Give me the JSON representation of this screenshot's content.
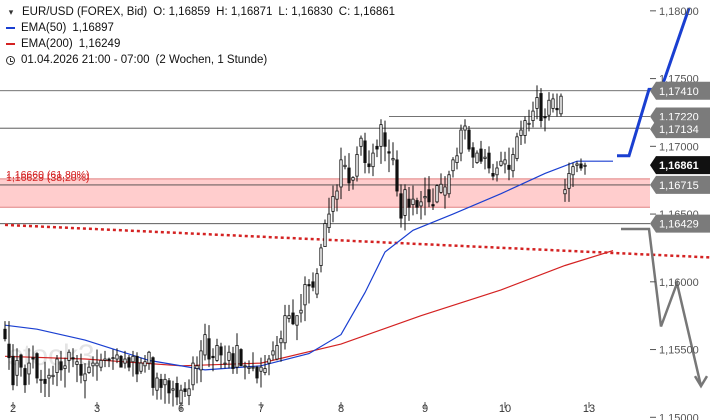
{
  "legend": {
    "symbol": "EUR/USD (FOREX, Bid)",
    "ohlc": [
      "O: 1,16859",
      "H: 1,16871",
      "L: 1,16830",
      "C: 1,16861"
    ],
    "ema50": {
      "label": "EMA(50)",
      "value": "1,16897",
      "color": "#1a3fd1"
    },
    "ema200": {
      "label": "EMA(200)",
      "value": "1,16249",
      "color": "#d42222"
    },
    "period": "01.04.2026 21:00 - 07:00",
    "range": "(2 Wochen, 1 Stunde)"
  },
  "watermark": "stock3",
  "chart_data": {
    "type": "candlestick",
    "y_range": [
      1.1498,
      1.1808
    ],
    "y_ticks": [
      {
        "v": 1.18,
        "label": "1,18000"
      },
      {
        "v": 1.175,
        "label": "1,17500"
      },
      {
        "v": 1.17,
        "label": "1,17000"
      },
      {
        "v": 1.165,
        "label": "1,16500"
      },
      {
        "v": 1.16,
        "label": "1,16000"
      },
      {
        "v": 1.155,
        "label": "1,15500"
      },
      {
        "v": 1.15,
        "label": "1,15000"
      }
    ],
    "x_ticks": [
      {
        "label": "2",
        "idx": 2
      },
      {
        "label": "3",
        "idx": 23
      },
      {
        "label": "6",
        "idx": 44
      },
      {
        "label": "7",
        "idx": 64
      },
      {
        "label": "8",
        "idx": 84
      },
      {
        "label": "9",
        "idx": 105
      },
      {
        "label": "10",
        "idx": 125
      },
      {
        "label": "13",
        "idx": 146
      }
    ],
    "price_labels": [
      {
        "v": 1.1741,
        "label": "1,17410",
        "color": "#ffffff",
        "bg": "#7b7b7b"
      },
      {
        "v": 1.1722,
        "label": "1,17220",
        "color": "#ffffff",
        "bg": "#7b7b7b"
      },
      {
        "v": 1.17134,
        "label": "1,17134",
        "color": "#ffffff",
        "bg": "#7b7b7b"
      },
      {
        "v": 1.16861,
        "label": "1,16861",
        "color": "#ffffff",
        "bg": "#111111"
      },
      {
        "v": 1.16715,
        "label": "1,16715",
        "color": "#ffffff",
        "bg": "#7b7b7b"
      },
      {
        "v": 1.16429,
        "label": "1,16429",
        "color": "#ffffff",
        "bg": "#7b7b7b"
      }
    ],
    "zone": {
      "from": 1.1655,
      "to": 1.1676,
      "labels": [
        "1,16660 (61,80%)",
        "1,16629 (38,20%)"
      ],
      "color": "#d42222"
    },
    "hlines": [
      {
        "v": 1.1741,
        "from_idx": 0
      },
      {
        "v": 1.1722,
        "from_idx": 96
      },
      {
        "v": 1.17134,
        "from_idx": 0
      },
      {
        "v": 1.16715,
        "from_idx": 0
      },
      {
        "v": 1.16429,
        "from_idx": 0
      }
    ],
    "trendline": {
      "from": {
        "idx": 0,
        "v": 1.1642
      },
      "to": {
        "idx": 182,
        "v": 1.1618
      }
    },
    "projection_up": [
      {
        "idx": 153,
        "v": 1.1693
      },
      {
        "idx": 156,
        "v": 1.1693
      },
      {
        "idx": 161,
        "v": 1.1742
      },
      {
        "idx": 164,
        "v": 1.1742
      },
      {
        "idx": 171,
        "v": 1.1802
      }
    ],
    "projection_down": [
      {
        "idx": 154,
        "v": 1.1639
      },
      {
        "idx": 161,
        "v": 1.1639
      },
      {
        "idx": 164,
        "v": 1.1567
      },
      {
        "idx": 168,
        "v": 1.1599
      },
      {
        "idx": 174,
        "v": 1.1523
      }
    ],
    "ema50_series": [
      [
        0,
        1.1568
      ],
      [
        8,
        1.1565
      ],
      [
        20,
        1.1557
      ],
      [
        36,
        1.1542
      ],
      [
        50,
        1.1535
      ],
      [
        64,
        1.1538
      ],
      [
        76,
        1.1547
      ],
      [
        84,
        1.1561
      ],
      [
        90,
        1.1592
      ],
      [
        95,
        1.1622
      ],
      [
        102,
        1.1638
      ],
      [
        112,
        1.165
      ],
      [
        124,
        1.1665
      ],
      [
        135,
        1.168
      ],
      [
        143,
        1.1689
      ],
      [
        152,
        1.1689
      ]
    ],
    "ema200_series": [
      [
        0,
        1.1545
      ],
      [
        20,
        1.1543
      ],
      [
        44,
        1.1538
      ],
      [
        64,
        1.154
      ],
      [
        84,
        1.1554
      ],
      [
        104,
        1.1575
      ],
      [
        124,
        1.1594
      ],
      [
        140,
        1.1612
      ],
      [
        152,
        1.1623
      ]
    ],
    "candles": [
      [
        1.1565,
        1.1571,
        1.1556,
        1.1558
      ],
      [
        1.1554,
        1.1571,
        1.1535,
        1.1544
      ],
      [
        1.1545,
        1.1554,
        1.152,
        1.1524
      ],
      [
        1.1531,
        1.1551,
        1.1523,
        1.1542
      ],
      [
        1.1546,
        1.1547,
        1.153,
        1.1537
      ],
      [
        1.1536,
        1.1539,
        1.1518,
        1.1524
      ],
      [
        1.1532,
        1.1551,
        1.1524,
        1.154
      ],
      [
        1.1544,
        1.1553,
        1.1536,
        1.1543
      ],
      [
        1.1547,
        1.1548,
        1.1525,
        1.1529
      ],
      [
        1.1528,
        1.1535,
        1.1518,
        1.1528
      ],
      [
        1.1528,
        1.1541,
        1.1515,
        1.1525
      ],
      [
        1.1529,
        1.1536,
        1.1515,
        1.1531
      ],
      [
        1.153,
        1.1538,
        1.1524,
        1.1531
      ],
      [
        1.1533,
        1.1546,
        1.1523,
        1.1543
      ],
      [
        1.1541,
        1.1549,
        1.1527,
        1.1535
      ],
      [
        1.1536,
        1.1544,
        1.1522,
        1.1538
      ],
      [
        1.1542,
        1.155,
        1.1533,
        1.1548
      ],
      [
        1.1544,
        1.1551,
        1.1537,
        1.1543
      ],
      [
        1.1539,
        1.1546,
        1.1526,
        1.1541
      ],
      [
        1.1539,
        1.1547,
        1.1525,
        1.1531
      ],
      [
        1.1527,
        1.154,
        1.1514,
        1.1532
      ],
      [
        1.1533,
        1.1542,
        1.1532,
        1.1537
      ],
      [
        1.1538,
        1.1545,
        1.153,
        1.154
      ],
      [
        1.1538,
        1.155,
        1.1527,
        1.154
      ],
      [
        1.1537,
        1.1547,
        1.1534,
        1.1542
      ],
      [
        1.1542,
        1.1549,
        1.1537,
        1.1543
      ],
      [
        1.1543,
        1.1544,
        1.1537,
        1.1542
      ],
      [
        1.1544,
        1.155,
        1.1535,
        1.1544
      ],
      [
        1.1543,
        1.1551,
        1.154,
        1.1546
      ],
      [
        1.1545,
        1.1546,
        1.1537,
        1.1537
      ],
      [
        1.154,
        1.1549,
        1.1536,
        1.1543
      ],
      [
        1.1544,
        1.1546,
        1.1534,
        1.1537
      ],
      [
        1.1541,
        1.1549,
        1.153,
        1.1545
      ],
      [
        1.1545,
        1.1548,
        1.1526,
        1.1532
      ],
      [
        1.1534,
        1.1544,
        1.1532,
        1.154
      ],
      [
        1.1538,
        1.1546,
        1.1533,
        1.1541
      ],
      [
        1.154,
        1.1549,
        1.1535,
        1.1548
      ],
      [
        1.1544,
        1.1545,
        1.1516,
        1.1522
      ],
      [
        1.152,
        1.1533,
        1.1513,
        1.1529
      ],
      [
        1.1528,
        1.1532,
        1.1513,
        1.1522
      ],
      [
        1.1524,
        1.1532,
        1.151,
        1.1528
      ],
      [
        1.1527,
        1.1529,
        1.151,
        1.1518
      ],
      [
        1.152,
        1.1527,
        1.1508,
        1.1521
      ],
      [
        1.1525,
        1.153,
        1.1509,
        1.1515
      ],
      [
        1.151,
        1.1524,
        1.1505,
        1.152
      ],
      [
        1.1521,
        1.1526,
        1.1515,
        1.1519
      ],
      [
        1.1516,
        1.1528,
        1.1509,
        1.1521
      ],
      [
        1.1524,
        1.1545,
        1.152,
        1.154
      ],
      [
        1.1536,
        1.1545,
        1.1525,
        1.1538
      ],
      [
        1.1535,
        1.1557,
        1.1526,
        1.1549
      ],
      [
        1.1546,
        1.1569,
        1.1542,
        1.1561
      ],
      [
        1.1558,
        1.1568,
        1.1537,
        1.1543
      ],
      [
        1.1545,
        1.1551,
        1.1534,
        1.1544
      ],
      [
        1.1542,
        1.1558,
        1.1541,
        1.1553
      ],
      [
        1.1552,
        1.1555,
        1.1536,
        1.1546
      ],
      [
        1.154,
        1.1553,
        1.1536,
        1.154
      ],
      [
        1.1542,
        1.1553,
        1.1536,
        1.1548
      ],
      [
        1.1547,
        1.1552,
        1.1532,
        1.1536
      ],
      [
        1.1537,
        1.1562,
        1.1532,
        1.1553
      ],
      [
        1.155,
        1.1551,
        1.1538,
        1.1538
      ],
      [
        1.1538,
        1.1541,
        1.1528,
        1.1538
      ],
      [
        1.1536,
        1.1542,
        1.1532,
        1.1537
      ],
      [
        1.1537,
        1.1548,
        1.1534,
        1.1537
      ],
      [
        1.1537,
        1.1538,
        1.1525,
        1.1529
      ],
      [
        1.1534,
        1.1544,
        1.1522,
        1.1537
      ],
      [
        1.1533,
        1.1546,
        1.1531,
        1.1536
      ],
      [
        1.154,
        1.1546,
        1.1531,
        1.1543
      ],
      [
        1.1546,
        1.1556,
        1.1542,
        1.1549
      ],
      [
        1.1543,
        1.156,
        1.1542,
        1.1553
      ],
      [
        1.1555,
        1.1564,
        1.1541,
        1.1558
      ],
      [
        1.1555,
        1.1583,
        1.155,
        1.1575
      ],
      [
        1.1573,
        1.1583,
        1.157,
        1.1575
      ],
      [
        1.1577,
        1.1587,
        1.1568,
        1.1569
      ],
      [
        1.1568,
        1.1575,
        1.1557,
        1.1575
      ],
      [
        1.1577,
        1.1591,
        1.157,
        1.1579
      ],
      [
        1.1583,
        1.1604,
        1.1571,
        1.1598
      ],
      [
        1.1598,
        1.1602,
        1.1584,
        1.1597
      ],
      [
        1.16,
        1.1607,
        1.1593,
        1.1596
      ],
      [
        1.1591,
        1.161,
        1.1588,
        1.1606
      ],
      [
        1.1612,
        1.1628,
        1.1607,
        1.1625
      ],
      [
        1.1626,
        1.1646,
        1.1626,
        1.1643
      ],
      [
        1.164,
        1.1662,
        1.1636,
        1.165
      ],
      [
        1.1652,
        1.1671,
        1.1644,
        1.1663
      ],
      [
        1.1661,
        1.1672,
        1.1652,
        1.1667
      ],
      [
        1.167,
        1.1699,
        1.1661,
        1.169
      ],
      [
        1.1685,
        1.1693,
        1.1683,
        1.1686
      ],
      [
        1.1684,
        1.1695,
        1.1667,
        1.1673
      ],
      [
        1.1675,
        1.1678,
        1.1668,
        1.1677
      ],
      [
        1.1678,
        1.17,
        1.1674,
        1.1694
      ],
      [
        1.17,
        1.1708,
        1.1693,
        1.1706
      ],
      [
        1.1704,
        1.171,
        1.168,
        1.1688
      ],
      [
        1.1687,
        1.1697,
        1.168,
        1.1685
      ],
      [
        1.1685,
        1.1702,
        1.1678,
        1.1695
      ],
      [
        1.17,
        1.1705,
        1.1692,
        1.1698
      ],
      [
        1.17,
        1.172,
        1.1687,
        1.1716
      ],
      [
        1.171,
        1.1719,
        1.1689,
        1.17
      ],
      [
        1.1696,
        1.1705,
        1.1681,
        1.1695
      ],
      [
        1.169,
        1.1703,
        1.1686,
        1.1691
      ],
      [
        1.169,
        1.1697,
        1.1663,
        1.1667
      ],
      [
        1.1665,
        1.1672,
        1.164,
        1.1647
      ],
      [
        1.1649,
        1.1672,
        1.1638,
        1.1668
      ],
      [
        1.1661,
        1.167,
        1.1645,
        1.1655
      ],
      [
        1.1657,
        1.1671,
        1.1649,
        1.1661
      ],
      [
        1.166,
        1.1662,
        1.165,
        1.1655
      ],
      [
        1.1656,
        1.1667,
        1.1646,
        1.1659
      ],
      [
        1.1662,
        1.1677,
        1.1649,
        1.1663
      ],
      [
        1.1668,
        1.1678,
        1.1655,
        1.1659
      ],
      [
        1.1657,
        1.1669,
        1.1653,
        1.1656
      ],
      [
        1.1659,
        1.1672,
        1.1658,
        1.1671
      ],
      [
        1.1666,
        1.168,
        1.1665,
        1.1672
      ],
      [
        1.1664,
        1.1678,
        1.1654,
        1.167
      ],
      [
        1.1665,
        1.1682,
        1.1662,
        1.1679
      ],
      [
        1.1682,
        1.1692,
        1.1677,
        1.169
      ],
      [
        1.1688,
        1.1699,
        1.1683,
        1.1693
      ],
      [
        1.1695,
        1.1716,
        1.1689,
        1.1712
      ],
      [
        1.1712,
        1.172,
        1.1705,
        1.1715
      ],
      [
        1.1712,
        1.1715,
        1.1696,
        1.1698
      ],
      [
        1.1699,
        1.1703,
        1.1684,
        1.1692
      ],
      [
        1.1688,
        1.1697,
        1.1687,
        1.1695
      ],
      [
        1.1698,
        1.1704,
        1.1687,
        1.1689
      ],
      [
        1.1691,
        1.1698,
        1.1683,
        1.1692
      ],
      [
        1.1695,
        1.17,
        1.168,
        1.1684
      ],
      [
        1.168,
        1.1687,
        1.1675,
        1.1678
      ],
      [
        1.1679,
        1.1689,
        1.1674,
        1.1684
      ],
      [
        1.1686,
        1.1696,
        1.1685,
        1.1689
      ],
      [
        1.1687,
        1.1696,
        1.168,
        1.169
      ],
      [
        1.1686,
        1.1699,
        1.1675,
        1.1683
      ],
      [
        1.1682,
        1.1699,
        1.1677,
        1.1694
      ],
      [
        1.1691,
        1.171,
        1.1689,
        1.1707
      ],
      [
        1.1708,
        1.1719,
        1.1701,
        1.1712
      ],
      [
        1.1708,
        1.1722,
        1.1702,
        1.1719
      ],
      [
        1.1717,
        1.1727,
        1.1711,
        1.1717
      ],
      [
        1.1719,
        1.1733,
        1.1714,
        1.1726
      ],
      [
        1.1728,
        1.1745,
        1.172,
        1.1736
      ],
      [
        1.1739,
        1.1743,
        1.1714,
        1.1719
      ],
      [
        1.1722,
        1.1728,
        1.1711,
        1.1721
      ],
      [
        1.1723,
        1.174,
        1.1719,
        1.1734
      ],
      [
        1.1728,
        1.1739,
        1.1725,
        1.1735
      ],
      [
        1.1728,
        1.1739,
        1.1722,
        1.1727
      ],
      [
        1.1724,
        1.1739,
        1.1722,
        1.1737
      ],
      [
        1.1665,
        1.1676,
        1.1659,
        1.1668
      ],
      [
        1.1669,
        1.1688,
        1.1659,
        1.168
      ],
      [
        1.1679,
        1.1688,
        1.167,
        1.1685
      ],
      [
        1.1686,
        1.1689,
        1.1681,
        1.1687
      ],
      [
        1.1687,
        1.1691,
        1.1682,
        1.1684
      ],
      [
        1.1686,
        1.1688,
        1.1679,
        1.1686
      ]
    ]
  }
}
